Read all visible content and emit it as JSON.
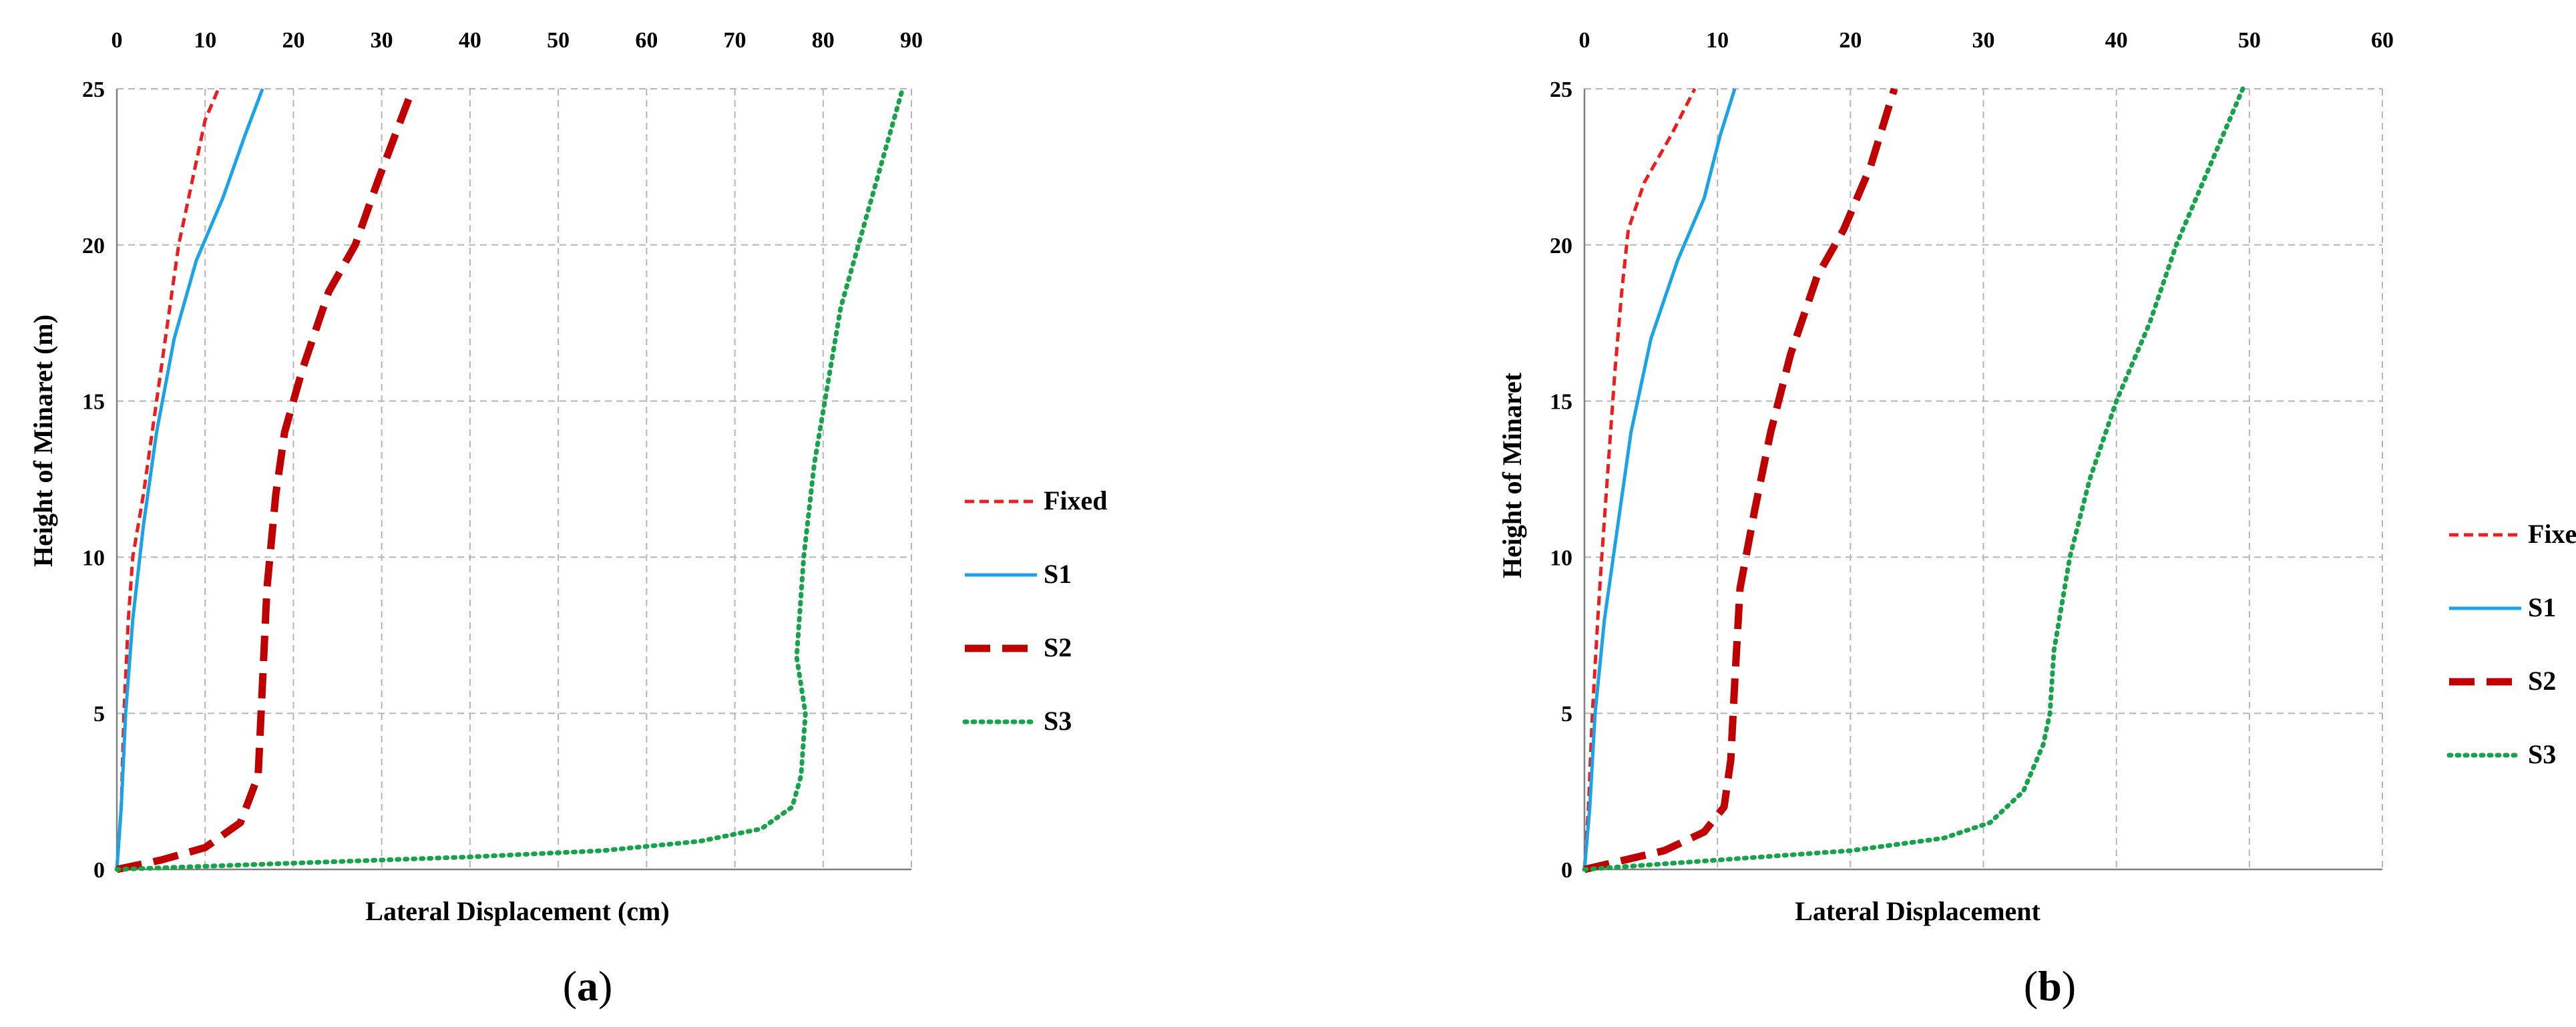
{
  "figure": {
    "panel_labels_a": {
      "open": "(",
      "letter": "a",
      "close": ")"
    },
    "panel_labels_b": {
      "open": "(",
      "letter": "b",
      "close": ")"
    }
  },
  "colors": {
    "Fixed": "#ee1c1c",
    "S1": "#1aa3e6",
    "S2": "#c00000",
    "S3": "#16a34a"
  },
  "chart_data": [
    {
      "type": "line",
      "panel": "(a)",
      "orientation": "vertical-profile",
      "xlabel": "Lateral Displacement (cm)",
      "ylabel": "Height of Minaret (m)",
      "xlim": [
        0,
        90
      ],
      "ylim": [
        0,
        25
      ],
      "xticks": [
        0,
        10,
        20,
        30,
        40,
        50,
        60,
        70,
        80,
        90
      ],
      "yticks": [
        0,
        5,
        10,
        15,
        20,
        25
      ],
      "x_axis_position": "top",
      "grid": true,
      "legend": {
        "placement": "right",
        "entries": [
          "Fixed",
          "S1",
          "S2",
          "S3"
        ]
      },
      "series": [
        {
          "name": "Fixed",
          "style": "short-dash",
          "points": [
            [
              0,
              0
            ],
            [
              0.5,
              2
            ],
            [
              0.8,
              5
            ],
            [
              1.3,
              8
            ],
            [
              1.8,
              10
            ],
            [
              3,
              12
            ],
            [
              4.5,
              15
            ],
            [
              6,
              18
            ],
            [
              7,
              20
            ],
            [
              8.5,
              22
            ],
            [
              10,
              24
            ],
            [
              11.5,
              25
            ]
          ]
        },
        {
          "name": "S1",
          "style": "solid",
          "points": [
            [
              0,
              0
            ],
            [
              0.5,
              2
            ],
            [
              1,
              5
            ],
            [
              1.8,
              8
            ],
            [
              3,
              11
            ],
            [
              4.5,
              14
            ],
            [
              6.5,
              17
            ],
            [
              9,
              19.5
            ],
            [
              12,
              21.5
            ],
            [
              14.5,
              23.5
            ],
            [
              16.5,
              25
            ]
          ]
        },
        {
          "name": "S2",
          "style": "long-dash",
          "points": [
            [
              0,
              0
            ],
            [
              5,
              0.3
            ],
            [
              10,
              0.7
            ],
            [
              14,
              1.5
            ],
            [
              16,
              3
            ],
            [
              16.5,
              6
            ],
            [
              17,
              9
            ],
            [
              18,
              12
            ],
            [
              19,
              14
            ],
            [
              21,
              16
            ],
            [
              24,
              18.5
            ],
            [
              27,
              20
            ],
            [
              29.5,
              22
            ],
            [
              31.5,
              23.5
            ],
            [
              33.5,
              25
            ]
          ]
        },
        {
          "name": "S3",
          "style": "dotted",
          "points": [
            [
              0,
              0
            ],
            [
              20,
              0.2
            ],
            [
              40,
              0.4
            ],
            [
              55,
              0.6
            ],
            [
              66,
              0.9
            ],
            [
              73,
              1.3
            ],
            [
              76.5,
              2
            ],
            [
              77.5,
              3
            ],
            [
              78,
              5
            ],
            [
              77,
              6.8
            ],
            [
              77.8,
              10
            ],
            [
              79,
              13
            ],
            [
              80.5,
              15.5
            ],
            [
              82,
              18
            ],
            [
              84,
              20
            ],
            [
              86.5,
              22.5
            ],
            [
              89,
              25
            ]
          ]
        }
      ]
    },
    {
      "type": "line",
      "panel": "(b)",
      "orientation": "vertical-profile",
      "xlabel": "Lateral Displacement",
      "ylabel": "Height of Minaret",
      "xlim": [
        0,
        60
      ],
      "ylim": [
        0,
        25
      ],
      "xticks": [
        0,
        10,
        20,
        30,
        40,
        50,
        60
      ],
      "yticks": [
        0,
        5,
        10,
        15,
        20,
        25
      ],
      "x_axis_position": "top",
      "grid": true,
      "legend": {
        "placement": "right",
        "entries": [
          "Fixed",
          "S1",
          "S2",
          "S3"
        ]
      },
      "series": [
        {
          "name": "Fixed",
          "style": "short-dash",
          "points": [
            [
              0,
              0
            ],
            [
              0.3,
              2
            ],
            [
              0.6,
              5
            ],
            [
              1,
              8
            ],
            [
              1.3,
              10
            ],
            [
              1.8,
              13
            ],
            [
              2.3,
              16
            ],
            [
              2.8,
              18.5
            ],
            [
              3.3,
              20.5
            ],
            [
              4.5,
              22
            ],
            [
              6.5,
              23.5
            ],
            [
              8.3,
              25
            ]
          ]
        },
        {
          "name": "S1",
          "style": "solid",
          "points": [
            [
              0,
              0
            ],
            [
              0.4,
              2
            ],
            [
              0.8,
              5
            ],
            [
              1.5,
              8
            ],
            [
              2.5,
              11
            ],
            [
              3.5,
              14
            ],
            [
              5,
              17
            ],
            [
              7,
              19.5
            ],
            [
              9,
              21.5
            ],
            [
              10.2,
              23.5
            ],
            [
              11.3,
              25
            ]
          ]
        },
        {
          "name": "S2",
          "style": "long-dash",
          "points": [
            [
              0,
              0
            ],
            [
              3,
              0.3
            ],
            [
              6,
              0.6
            ],
            [
              9,
              1.2
            ],
            [
              10.5,
              2
            ],
            [
              11,
              3.5
            ],
            [
              11.3,
              6
            ],
            [
              11.7,
              9
            ],
            [
              12.8,
              11.5
            ],
            [
              14,
              14
            ],
            [
              15.5,
              16.5
            ],
            [
              17.5,
              19
            ],
            [
              19.5,
              20.5
            ],
            [
              21.5,
              22.5
            ],
            [
              23.3,
              25
            ]
          ]
        },
        {
          "name": "S3",
          "style": "dotted",
          "points": [
            [
              0,
              0
            ],
            [
              10,
              0.3
            ],
            [
              20,
              0.6
            ],
            [
              27,
              1
            ],
            [
              30.5,
              1.5
            ],
            [
              33,
              2.5
            ],
            [
              34.5,
              4
            ],
            [
              35,
              5
            ],
            [
              35.3,
              7
            ],
            [
              36.5,
              10
            ],
            [
              38,
              12.5
            ],
            [
              40,
              15
            ],
            [
              42.5,
              17.5
            ],
            [
              44.5,
              20
            ],
            [
              47,
              22.5
            ],
            [
              49.5,
              25
            ]
          ]
        }
      ]
    }
  ]
}
